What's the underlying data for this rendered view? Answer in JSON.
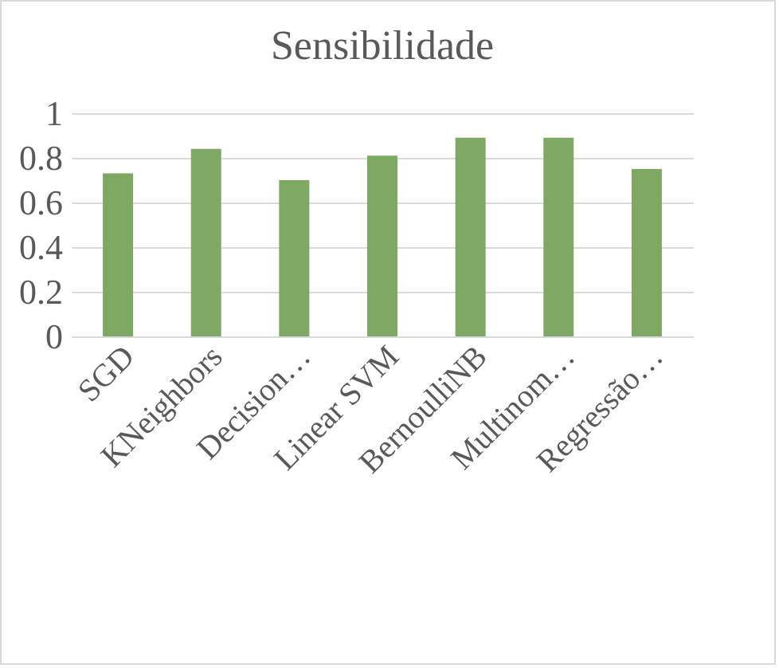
{
  "chart_data": {
    "type": "bar",
    "title": "Sensibilidade",
    "categories": [
      "SGD",
      "KNeighbors",
      "Decision…",
      "Linear SVM",
      "BernoulliNB",
      "Multinom…",
      "Regressão…"
    ],
    "values": [
      0.73,
      0.84,
      0.7,
      0.81,
      0.89,
      0.89,
      0.75
    ],
    "color": "#7fa863",
    "ylim": [
      0,
      1
    ],
    "yticks": [
      0,
      0.2,
      0.4,
      0.6,
      0.8,
      1
    ],
    "grid": "y"
  }
}
